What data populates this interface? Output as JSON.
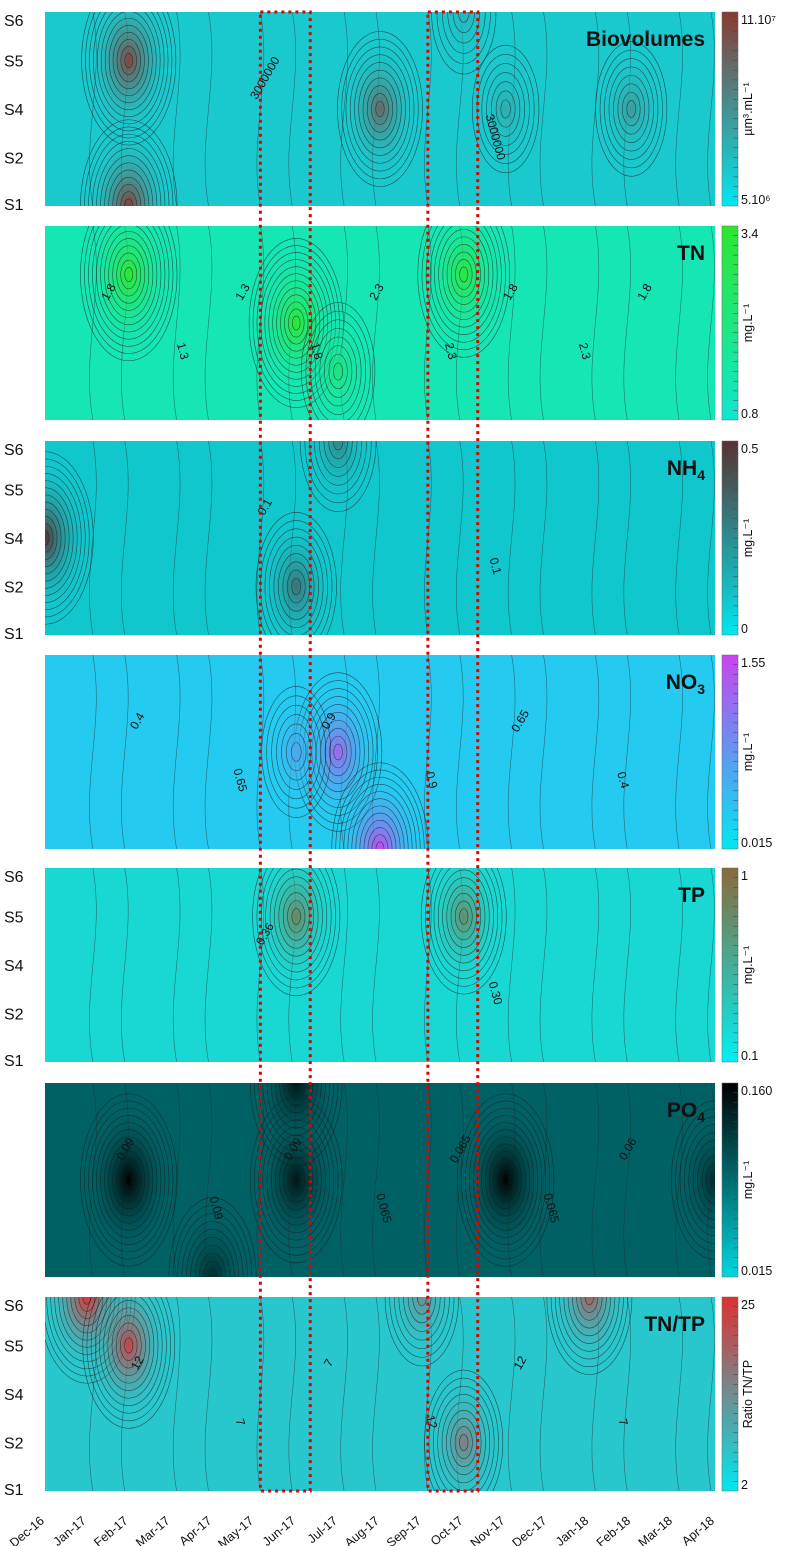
{
  "chart_data": {
    "type": "heatmap",
    "x_ticks": [
      "Dec-16",
      "Jan-17",
      "Feb-17",
      "Mar-17",
      "Apr-17",
      "May-17",
      "Jun-17",
      "Jul-17",
      "Aug-17",
      "Sep-17",
      "Oct-17",
      "Nov-17",
      "Dec-17",
      "Jan-18",
      "Feb-18",
      "Mar-18",
      "Apr-18"
    ],
    "stations": [
      "S1",
      "S2",
      "S4",
      "S5",
      "S6"
    ],
    "highlight_periods": [
      [
        "May-17",
        "Jun-17"
      ],
      [
        "Sep-17",
        "Oct-17"
      ]
    ],
    "panels": [
      {
        "id": "biovolumes",
        "title": "Biovolumes",
        "title_sub": "",
        "unit": "µm³.mL⁻¹",
        "scale_max": "11.10⁷",
        "scale_min": "5.10⁶",
        "show_stations": true,
        "colors": [
          "#00e8f0",
          "#8a3a32"
        ],
        "contour_labels": [
          "3000000",
          "3000000"
        ],
        "hotspots": [
          {
            "x": "Feb-17",
            "station": "S5",
            "v": 0.95
          },
          {
            "x": "Feb-17",
            "station": "S1",
            "v": 1.0
          },
          {
            "x": "Aug-17",
            "station": "S4",
            "v": 0.75
          },
          {
            "x": "Nov-17",
            "station": "S4",
            "v": 0.35
          },
          {
            "x": "Feb-18",
            "station": "S4",
            "v": 0.45
          },
          {
            "x": "Oct-17",
            "station": "S6",
            "v": 0.3
          }
        ]
      },
      {
        "id": "tn",
        "title": "TN",
        "title_sub": "",
        "unit": "mg.L⁻¹",
        "scale_max": "3.4",
        "scale_min": "0.8",
        "show_stations": false,
        "colors": [
          "#10e6d0",
          "#2ee62e"
        ],
        "contour_labels": [
          "1.8",
          "1.3",
          "1.3",
          "1.8",
          "2.3",
          "2.3",
          "1.8",
          "2.3",
          "1.8"
        ],
        "hotspots": [
          {
            "x": "Feb-17",
            "station": "S5",
            "v": 1.0
          },
          {
            "x": "Jun-17",
            "station": "S4",
            "v": 0.95
          },
          {
            "x": "Oct-17",
            "station": "S5",
            "v": 0.9
          },
          {
            "x": "Jul-17",
            "station": "S2",
            "v": 0.5
          }
        ]
      },
      {
        "id": "nh4",
        "title": "NH",
        "title_sub": "4",
        "unit": "mg.L⁻¹",
        "scale_max": "0.5",
        "scale_min": "0",
        "show_stations": true,
        "colors": [
          "#00e8f0",
          "#5a3030"
        ],
        "contour_labels": [
          "0.1",
          "0.1"
        ],
        "hotspots": [
          {
            "x": "Dec-16",
            "station": "S4",
            "v": 1.0
          },
          {
            "x": "Jun-17",
            "station": "S2",
            "v": 0.65
          },
          {
            "x": "Jul-17",
            "station": "S6",
            "v": 0.55
          }
        ]
      },
      {
        "id": "no3",
        "title": "NO",
        "title_sub": "3",
        "unit": "mg.L⁻¹",
        "scale_max": "1.55",
        "scale_min": "0.015",
        "show_stations": false,
        "colors": [
          "#00e8f0",
          "#c844ee"
        ],
        "contour_labels": [
          "0.4",
          "0.65",
          "0.9",
          "0.9",
          "0.65",
          "0.4"
        ],
        "hotspots": [
          {
            "x": "Jul-17",
            "station": "S4",
            "v": 0.8
          },
          {
            "x": "Aug-17",
            "station": "S1",
            "v": 1.0
          },
          {
            "x": "Jun-17",
            "station": "S4",
            "v": 0.4
          }
        ]
      },
      {
        "id": "tp",
        "title": "TP",
        "title_sub": "",
        "unit": "mg.L⁻¹",
        "scale_max": "1",
        "scale_min": "0.1",
        "show_stations": true,
        "colors": [
          "#00f0f4",
          "#8a6a3a"
        ],
        "contour_labels": [
          "0.36",
          "0.30"
        ],
        "hotspots": [
          {
            "x": "Jun-17",
            "station": "S5",
            "v": 0.8
          },
          {
            "x": "Oct-17",
            "station": "S5",
            "v": 0.75
          }
        ]
      },
      {
        "id": "po4",
        "title": "PO",
        "title_sub": "4",
        "unit": "mg.L⁻¹",
        "scale_max": "0.160",
        "scale_min": "0.015",
        "show_stations": false,
        "colors": [
          "#00d8e0",
          "#000000"
        ],
        "base_level": 0.55,
        "contour_labels": [
          "0.09",
          "0.09",
          "0.09",
          "0.065",
          "0.065",
          "0.065",
          "0.06"
        ],
        "hotspots": [
          {
            "x": "Feb-17",
            "station": "S4",
            "v": 1.0
          },
          {
            "x": "Jun-17",
            "station": "S4",
            "v": 0.9
          },
          {
            "x": "Jun-17",
            "station": "S6",
            "v": 0.9
          },
          {
            "x": "Nov-17",
            "station": "S4",
            "v": 1.0
          },
          {
            "x": "Apr-17",
            "station": "S1",
            "v": 0.8
          },
          {
            "x": "Apr-18",
            "station": "S4",
            "v": 0.8
          }
        ]
      },
      {
        "id": "tntp",
        "title": "TN/TP",
        "title_sub": "",
        "unit": "Ratio TN/TP",
        "scale_max": "25",
        "scale_min": "2",
        "show_stations": true,
        "colors": [
          "#00e8f0",
          "#e03030"
        ],
        "contour_labels": [
          "12",
          "7",
          "7",
          "12",
          "12",
          "7"
        ],
        "hotspots": [
          {
            "x": "Jan-17",
            "station": "S6",
            "v": 1.0
          },
          {
            "x": "Feb-17",
            "station": "S5",
            "v": 0.9
          },
          {
            "x": "Jan-18",
            "station": "S6",
            "v": 0.75
          },
          {
            "x": "Oct-17",
            "station": "S2",
            "v": 0.6
          },
          {
            "x": "Sep-17",
            "station": "S6",
            "v": 0.5
          }
        ]
      }
    ]
  }
}
